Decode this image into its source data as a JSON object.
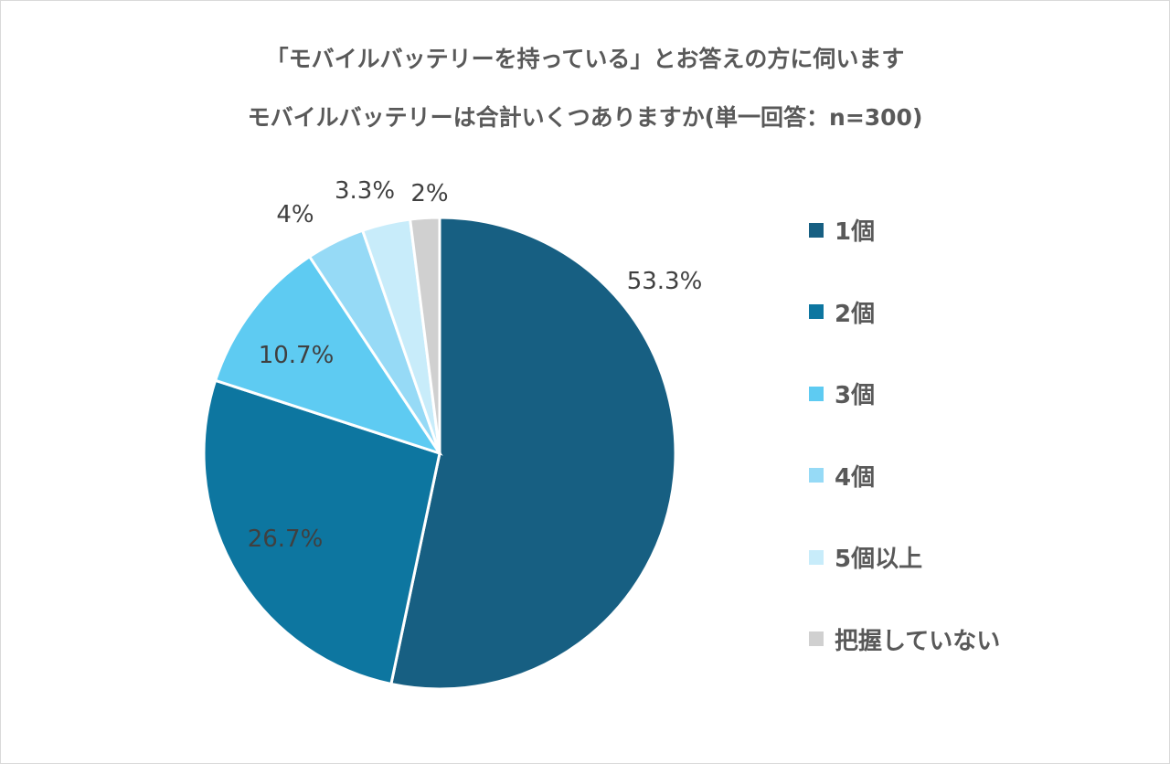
{
  "chart_data": {
    "type": "pie",
    "title": [
      "「モバイルバッテリーを持っている」とお答えの方に伺います",
      "モバイルバッテリーは合計いくつありますか(単一回答：n=300)"
    ],
    "categories": [
      "1個",
      "2個",
      "3個",
      "4個",
      "5個以上",
      "把握していない"
    ],
    "values": [
      53.3,
      26.7,
      10.7,
      4,
      3.3,
      2
    ],
    "labels": [
      "53.3%",
      "26.7%",
      "10.7%",
      "4%",
      "3.3%",
      "2%"
    ],
    "colors": [
      "#175f82",
      "#0d76a0",
      "#5ecbf2",
      "#96daf6",
      "#c8ecfa",
      "#d0d0d0"
    ],
    "legend": "right",
    "start_angle": "top, clockwise"
  }
}
